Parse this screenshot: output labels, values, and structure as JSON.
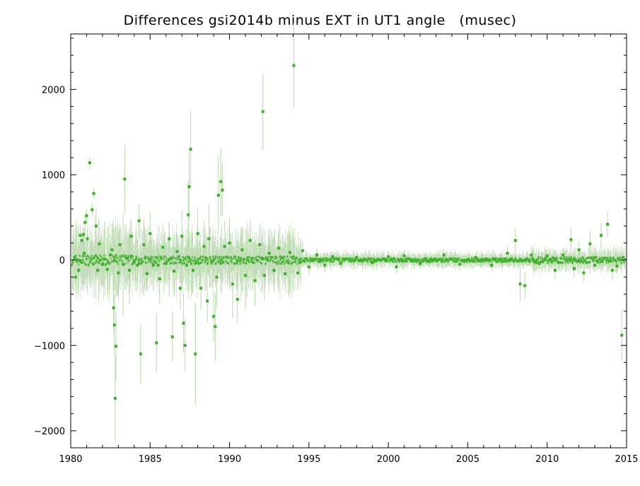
{
  "chart_data": {
    "type": "scatter",
    "title": "Differences gsi2014b minus EXT in UT1 angle   (musec)",
    "xlabel": "",
    "ylabel": "",
    "xlim": [
      1980,
      2015
    ],
    "ylim": [
      -2200,
      2650
    ],
    "x_ticks": [
      1980,
      1985,
      1990,
      1995,
      2000,
      2005,
      2010,
      2015
    ],
    "y_ticks": [
      -2000,
      -1000,
      0,
      1000,
      2000
    ],
    "colors": {
      "marker": "#3cb027",
      "errorbar": "#b8d8ac",
      "axis": "#000000"
    },
    "series": [
      {
        "points": [
          {
            "x": 1980.3,
            "y": -200,
            "e": 80
          },
          {
            "x": 1980.5,
            "y": -120,
            "e": 100
          },
          {
            "x": 1980.6,
            "y": 290,
            "e": 90
          },
          {
            "x": 1980.7,
            "y": 230,
            "e": 60
          },
          {
            "x": 1980.8,
            "y": 300,
            "e": 80
          },
          {
            "x": 1980.85,
            "y": 80,
            "e": 120
          },
          {
            "x": 1980.9,
            "y": 440,
            "e": 100
          },
          {
            "x": 1981.0,
            "y": 520,
            "e": 80
          },
          {
            "x": 1981.05,
            "y": 250,
            "e": 60
          },
          {
            "x": 1981.2,
            "y": 1140,
            "e": 70
          },
          {
            "x": 1981.35,
            "y": 590,
            "e": 80
          },
          {
            "x": 1981.45,
            "y": 780,
            "e": 60
          },
          {
            "x": 1981.6,
            "y": 400,
            "e": 200
          },
          {
            "x": 1981.7,
            "y": -120,
            "e": 70
          },
          {
            "x": 1981.8,
            "y": 190,
            "e": 60
          },
          {
            "x": 1982.0,
            "y": -50,
            "e": 120
          },
          {
            "x": 1982.1,
            "y": 10,
            "e": 90
          },
          {
            "x": 1982.3,
            "y": -110,
            "e": 80
          },
          {
            "x": 1982.5,
            "y": 60,
            "e": 120
          },
          {
            "x": 1982.6,
            "y": 120,
            "e": 300
          },
          {
            "x": 1982.7,
            "y": -560,
            "e": 300
          },
          {
            "x": 1982.75,
            "y": -760,
            "e": 350
          },
          {
            "x": 1982.8,
            "y": -1620,
            "e": 500
          },
          {
            "x": 1982.85,
            "y": -1010,
            "e": 400
          },
          {
            "x": 1983.0,
            "y": -150,
            "e": 300
          },
          {
            "x": 1983.1,
            "y": 180,
            "e": 250
          },
          {
            "x": 1983.3,
            "y": -50,
            "e": 600
          },
          {
            "x": 1983.4,
            "y": 950,
            "e": 400
          },
          {
            "x": 1983.55,
            "y": 20,
            "e": 300
          },
          {
            "x": 1983.7,
            "y": -120,
            "e": 400
          },
          {
            "x": 1983.8,
            "y": 280,
            "e": 200
          },
          {
            "x": 1984.0,
            "y": -20,
            "e": 100
          },
          {
            "x": 1984.2,
            "y": -60,
            "e": 300
          },
          {
            "x": 1984.3,
            "y": 460,
            "e": 200
          },
          {
            "x": 1984.4,
            "y": -1100,
            "e": 350
          },
          {
            "x": 1984.6,
            "y": 180,
            "e": 300
          },
          {
            "x": 1984.8,
            "y": -160,
            "e": 200
          },
          {
            "x": 1985.0,
            "y": 310,
            "e": 250
          },
          {
            "x": 1985.2,
            "y": -60,
            "e": 300
          },
          {
            "x": 1985.4,
            "y": -970,
            "e": 350
          },
          {
            "x": 1985.5,
            "y": -60,
            "e": 200
          },
          {
            "x": 1985.6,
            "y": -220,
            "e": 300
          },
          {
            "x": 1985.8,
            "y": 150,
            "e": 250
          },
          {
            "x": 1986.0,
            "y": -40,
            "e": 250
          },
          {
            "x": 1986.2,
            "y": 250,
            "e": 200
          },
          {
            "x": 1986.4,
            "y": -900,
            "e": 300
          },
          {
            "x": 1986.5,
            "y": -130,
            "e": 300
          },
          {
            "x": 1986.7,
            "y": 100,
            "e": 200
          },
          {
            "x": 1986.9,
            "y": -330,
            "e": 250
          },
          {
            "x": 1987.0,
            "y": 280,
            "e": 300
          },
          {
            "x": 1987.1,
            "y": -740,
            "e": 350
          },
          {
            "x": 1987.2,
            "y": -1000,
            "e": 300
          },
          {
            "x": 1987.3,
            "y": -60,
            "e": 200
          },
          {
            "x": 1987.4,
            "y": 530,
            "e": 400
          },
          {
            "x": 1987.45,
            "y": 860,
            "e": 400
          },
          {
            "x": 1987.55,
            "y": 1300,
            "e": 450
          },
          {
            "x": 1987.7,
            "y": -120,
            "e": 250
          },
          {
            "x": 1987.85,
            "y": -1100,
            "e": 600
          },
          {
            "x": 1988.0,
            "y": 310,
            "e": 300
          },
          {
            "x": 1988.2,
            "y": -330,
            "e": 250
          },
          {
            "x": 1988.4,
            "y": 160,
            "e": 300
          },
          {
            "x": 1988.6,
            "y": -480,
            "e": 250
          },
          {
            "x": 1988.7,
            "y": 250,
            "e": 400
          },
          {
            "x": 1988.9,
            "y": -20,
            "e": 300
          },
          {
            "x": 1989.0,
            "y": -660,
            "e": 300
          },
          {
            "x": 1989.1,
            "y": -780,
            "e": 400
          },
          {
            "x": 1989.2,
            "y": -200,
            "e": 350
          },
          {
            "x": 1989.3,
            "y": 760,
            "e": 450
          },
          {
            "x": 1989.45,
            "y": 920,
            "e": 400
          },
          {
            "x": 1989.55,
            "y": 820,
            "e": 300
          },
          {
            "x": 1989.7,
            "y": 160,
            "e": 300
          },
          {
            "x": 1990.0,
            "y": 200,
            "e": 300
          },
          {
            "x": 1990.2,
            "y": -280,
            "e": 400
          },
          {
            "x": 1990.5,
            "y": -460,
            "e": 300
          },
          {
            "x": 1990.8,
            "y": 120,
            "e": 200
          },
          {
            "x": 1991.0,
            "y": -180,
            "e": 400
          },
          {
            "x": 1991.3,
            "y": 230,
            "e": 250
          },
          {
            "x": 1991.6,
            "y": -240,
            "e": 300
          },
          {
            "x": 1991.9,
            "y": 180,
            "e": 200
          },
          {
            "x": 1992.1,
            "y": 1740,
            "e": 450
          },
          {
            "x": 1992.2,
            "y": -180,
            "e": 300
          },
          {
            "x": 1992.5,
            "y": 80,
            "e": 200
          },
          {
            "x": 1992.8,
            "y": -120,
            "e": 250
          },
          {
            "x": 1993.1,
            "y": 140,
            "e": 200
          },
          {
            "x": 1993.5,
            "y": -160,
            "e": 200
          },
          {
            "x": 1993.8,
            "y": 90,
            "e": 150
          },
          {
            "x": 1994.05,
            "y": 2280,
            "e": 500
          },
          {
            "x": 1994.3,
            "y": -150,
            "e": 200
          },
          {
            "x": 1994.6,
            "y": 110,
            "e": 120
          },
          {
            "x": 1995.0,
            "y": -80,
            "e": 100
          },
          {
            "x": 1995.5,
            "y": 60,
            "e": 80
          },
          {
            "x": 1996.0,
            "y": -60,
            "e": 80
          },
          {
            "x": 1996.5,
            "y": 40,
            "e": 60
          },
          {
            "x": 1997.0,
            "y": -40,
            "e": 60
          },
          {
            "x": 1998.0,
            "y": 30,
            "e": 50
          },
          {
            "x": 1999.0,
            "y": -30,
            "e": 50
          },
          {
            "x": 2000.0,
            "y": 40,
            "e": 60
          },
          {
            "x": 2000.5,
            "y": -80,
            "e": 80
          },
          {
            "x": 2001.0,
            "y": 50,
            "e": 60
          },
          {
            "x": 2002.0,
            "y": -40,
            "e": 60
          },
          {
            "x": 2003.5,
            "y": 60,
            "e": 70
          },
          {
            "x": 2004.5,
            "y": -50,
            "e": 80
          },
          {
            "x": 2005.5,
            "y": 30,
            "e": 60
          },
          {
            "x": 2006.5,
            "y": -60,
            "e": 70
          },
          {
            "x": 2007.5,
            "y": 80,
            "e": 80
          },
          {
            "x": 2008.0,
            "y": 230,
            "e": 150
          },
          {
            "x": 2008.3,
            "y": -280,
            "e": 200
          },
          {
            "x": 2008.6,
            "y": -300,
            "e": 150
          },
          {
            "x": 2009.0,
            "y": 60,
            "e": 80
          },
          {
            "x": 2009.5,
            "y": -40,
            "e": 70
          },
          {
            "x": 2010.0,
            "y": 50,
            "e": 60
          },
          {
            "x": 2010.5,
            "y": -120,
            "e": 100
          },
          {
            "x": 2011.0,
            "y": 60,
            "e": 80
          },
          {
            "x": 2011.5,
            "y": 240,
            "e": 150
          },
          {
            "x": 2011.7,
            "y": -100,
            "e": 100
          },
          {
            "x": 2012.0,
            "y": 120,
            "e": 100
          },
          {
            "x": 2012.3,
            "y": -150,
            "e": 100
          },
          {
            "x": 2012.7,
            "y": 190,
            "e": 150
          },
          {
            "x": 2013.0,
            "y": -60,
            "e": 80
          },
          {
            "x": 2013.4,
            "y": 290,
            "e": 150
          },
          {
            "x": 2013.8,
            "y": 420,
            "e": 150
          },
          {
            "x": 2014.1,
            "y": -120,
            "e": 120
          },
          {
            "x": 2014.4,
            "y": -70,
            "e": 80
          },
          {
            "x": 2014.7,
            "y": -880,
            "e": 300
          }
        ]
      }
    ]
  }
}
